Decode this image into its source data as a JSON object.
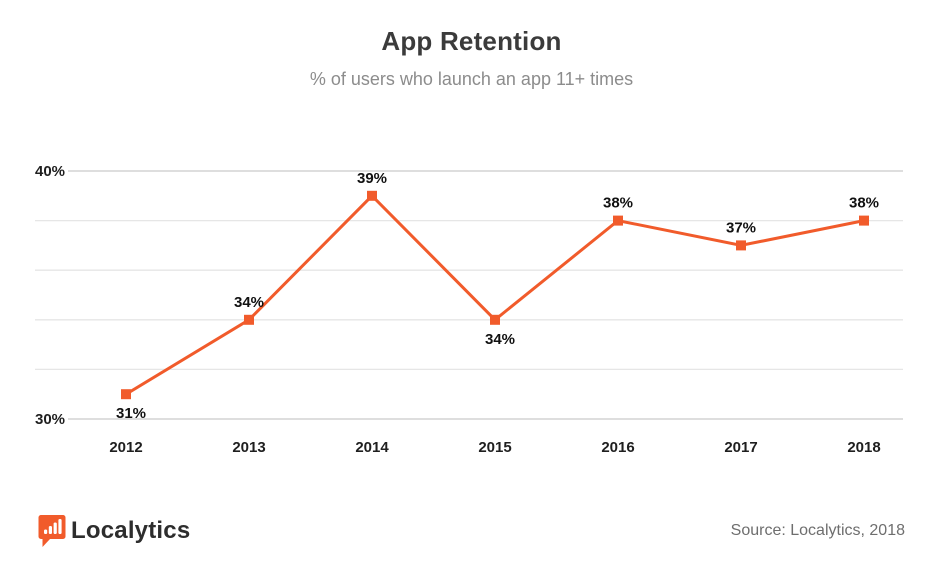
{
  "header": {
    "title": "App Retention",
    "subtitle": "% of users who launch an app 11+ times"
  },
  "chart_data": {
    "type": "line",
    "categories": [
      "2012",
      "2013",
      "2014",
      "2015",
      "2016",
      "2017",
      "2018"
    ],
    "series": [
      {
        "name": "App Retention",
        "values": [
          31,
          34,
          39,
          34,
          38,
          37,
          38
        ]
      }
    ],
    "data_labels": [
      "31%",
      "34%",
      "39%",
      "34%",
      "38%",
      "37%",
      "38%"
    ],
    "data_label_positions": [
      "below",
      "above",
      "above",
      "below",
      "above",
      "above",
      "above"
    ],
    "y_ticks": [
      {
        "value": 40,
        "label": "40%"
      },
      {
        "value": 30,
        "label": "30%"
      }
    ],
    "gridline_values": [
      40,
      38,
      36,
      34,
      32,
      30
    ],
    "ylim": [
      30,
      40
    ],
    "xlabel": "",
    "ylabel": "",
    "grid_on": true,
    "legend_position": "none",
    "marker_shape": "square",
    "line_color": "#F15B2B"
  },
  "footer": {
    "logo_icon": "bar-chart-speech-bubble-icon",
    "logo_text": "Localytics",
    "source": "Source: Localytics, 2018"
  },
  "colors": {
    "accent_orange": "#F15B2B",
    "title_text": "#3B3B3B",
    "subtitle_text": "#8C8C8C",
    "axis_text": "#1F1F1F",
    "data_label_text": "#111111",
    "gridline_labeled": "#C9C9C9",
    "gridline_unlabeled": "#E6E6E6",
    "source_text": "#6E6E6E",
    "logo_text_color": "#2D2D2D",
    "background": "#FFFFFF"
  }
}
